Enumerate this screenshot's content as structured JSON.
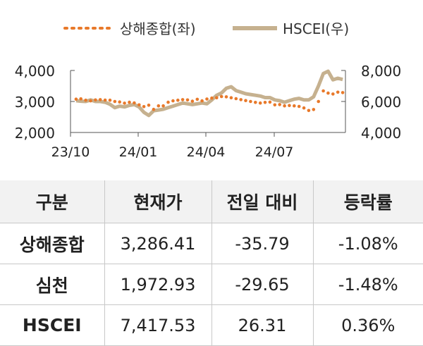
{
  "chart_data": {
    "type": "line",
    "x_ticks": [
      "23/10",
      "24/01",
      "24/04",
      "24/07"
    ],
    "y_left_ticks": [
      "2,000",
      "3,000",
      "4,000"
    ],
    "y_right_ticks": [
      "4,000",
      "6,000",
      "8,000"
    ],
    "y_left_range": [
      2000,
      4000
    ],
    "y_right_range": [
      4000,
      8000
    ],
    "legend_position": "top",
    "series": [
      {
        "name": "상해종합(좌)",
        "axis": "left",
        "style": "dotted",
        "color": "#e8792a",
        "points": [
          [
            "2023-10-09",
            3075
          ],
          [
            "2023-10-16",
            3085
          ],
          [
            "2023-10-23",
            3040
          ],
          [
            "2023-10-30",
            3020
          ],
          [
            "2023-11-06",
            3050
          ],
          [
            "2023-11-13",
            3060
          ],
          [
            "2023-11-20",
            3045
          ],
          [
            "2023-11-27",
            3040
          ],
          [
            "2023-12-04",
            3000
          ],
          [
            "2023-12-11",
            2985
          ],
          [
            "2023-12-18",
            2945
          ],
          [
            "2023-12-25",
            2975
          ],
          [
            "2024-01-01",
            2955
          ],
          [
            "2024-01-08",
            2890
          ],
          [
            "2024-01-15",
            2835
          ],
          [
            "2024-01-22",
            2880
          ],
          [
            "2024-01-29",
            2745
          ],
          [
            "2024-02-05",
            2860
          ],
          [
            "2024-02-12",
            2860
          ],
          [
            "2024-02-19",
            2975
          ],
          [
            "2024-02-26",
            3020
          ],
          [
            "2024-03-04",
            3040
          ],
          [
            "2024-03-11",
            3060
          ],
          [
            "2024-03-18",
            3050
          ],
          [
            "2024-03-25",
            3010
          ],
          [
            "2024-04-01",
            3070
          ],
          [
            "2024-04-08",
            3020
          ],
          [
            "2024-04-15",
            3080
          ],
          [
            "2024-04-22",
            3110
          ],
          [
            "2024-04-29",
            3120
          ],
          [
            "2024-05-06",
            3160
          ],
          [
            "2024-05-13",
            3150
          ],
          [
            "2024-05-20",
            3120
          ],
          [
            "2024-05-27",
            3090
          ],
          [
            "2024-06-03",
            3060
          ],
          [
            "2024-06-10",
            3030
          ],
          [
            "2024-06-17",
            3000
          ],
          [
            "2024-06-24",
            2970
          ],
          [
            "2024-07-01",
            2950
          ],
          [
            "2024-07-08",
            2970
          ],
          [
            "2024-07-15",
            2980
          ],
          [
            "2024-07-22",
            2890
          ],
          [
            "2024-07-29",
            2900
          ],
          [
            "2024-08-05",
            2860
          ],
          [
            "2024-08-12",
            2870
          ],
          [
            "2024-08-19",
            2860
          ],
          [
            "2024-08-26",
            2840
          ],
          [
            "2024-09-02",
            2790
          ],
          [
            "2024-09-09",
            2710
          ],
          [
            "2024-09-16",
            2740
          ],
          [
            "2024-09-23",
            3000
          ],
          [
            "2024-09-30",
            3340
          ],
          [
            "2024-10-07",
            3270
          ],
          [
            "2024-10-14",
            3240
          ],
          [
            "2024-10-21",
            3300
          ],
          [
            "2024-10-28",
            3286
          ]
        ]
      },
      {
        "name": "HSCEI(우)",
        "axis": "right",
        "style": "solid",
        "color": "#c6b18f",
        "points": [
          [
            "2023-10-09",
            6050
          ],
          [
            "2023-10-16",
            6020
          ],
          [
            "2023-10-23",
            6000
          ],
          [
            "2023-10-30",
            6100
          ],
          [
            "2023-11-06",
            6000
          ],
          [
            "2023-11-13",
            6000
          ],
          [
            "2023-11-20",
            5950
          ],
          [
            "2023-11-27",
            5820
          ],
          [
            "2023-12-04",
            5600
          ],
          [
            "2023-12-11",
            5700
          ],
          [
            "2023-12-18",
            5650
          ],
          [
            "2023-12-25",
            5750
          ],
          [
            "2024-01-01",
            5800
          ],
          [
            "2024-01-08",
            5650
          ],
          [
            "2024-01-15",
            5300
          ],
          [
            "2024-01-22",
            5100
          ],
          [
            "2024-01-29",
            5400
          ],
          [
            "2024-02-05",
            5450
          ],
          [
            "2024-02-12",
            5500
          ],
          [
            "2024-02-19",
            5600
          ],
          [
            "2024-02-26",
            5700
          ],
          [
            "2024-03-04",
            5800
          ],
          [
            "2024-03-11",
            5900
          ],
          [
            "2024-03-18",
            5850
          ],
          [
            "2024-03-25",
            5800
          ],
          [
            "2024-04-01",
            5850
          ],
          [
            "2024-04-08",
            5900
          ],
          [
            "2024-04-15",
            5850
          ],
          [
            "2024-04-22",
            6100
          ],
          [
            "2024-04-29",
            6400
          ],
          [
            "2024-05-06",
            6550
          ],
          [
            "2024-05-13",
            6850
          ],
          [
            "2024-05-20",
            6950
          ],
          [
            "2024-05-27",
            6700
          ],
          [
            "2024-06-03",
            6600
          ],
          [
            "2024-06-10",
            6500
          ],
          [
            "2024-06-17",
            6450
          ],
          [
            "2024-06-24",
            6400
          ],
          [
            "2024-07-01",
            6350
          ],
          [
            "2024-07-08",
            6250
          ],
          [
            "2024-07-15",
            6250
          ],
          [
            "2024-07-22",
            6100
          ],
          [
            "2024-07-29",
            6050
          ],
          [
            "2024-08-05",
            5950
          ],
          [
            "2024-08-12",
            6050
          ],
          [
            "2024-08-19",
            6150
          ],
          [
            "2024-08-26",
            6200
          ],
          [
            "2024-09-02",
            6100
          ],
          [
            "2024-09-09",
            6100
          ],
          [
            "2024-09-16",
            6300
          ],
          [
            "2024-09-23",
            7000
          ],
          [
            "2024-09-30",
            7800
          ],
          [
            "2024-10-07",
            7950
          ],
          [
            "2024-10-14",
            7400
          ],
          [
            "2024-10-21",
            7500
          ],
          [
            "2024-10-28",
            7418
          ]
        ]
      }
    ]
  },
  "table": {
    "headers": [
      "구분",
      "현재가",
      "전일 대비",
      "등락률"
    ],
    "rows": [
      {
        "name": "상해종합",
        "price": "3,286.41",
        "change": "-35.79",
        "rate": "-1.08%"
      },
      {
        "name": "심천",
        "price": "1,972.93",
        "change": "-29.65",
        "rate": "-1.48%"
      },
      {
        "name": "HSCEI",
        "price": "7,417.53",
        "change": "26.31",
        "rate": "0.36%"
      }
    ]
  }
}
